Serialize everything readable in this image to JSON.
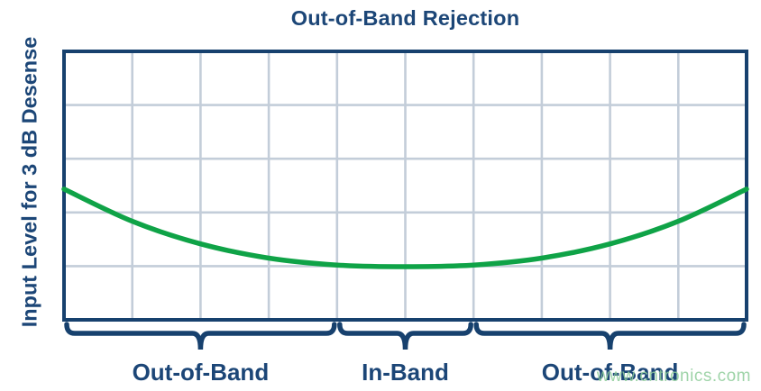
{
  "chart_data": {
    "type": "line",
    "title": "Out-of-Band Rejection",
    "ylabel": "Input Level for 3 dB Desense",
    "xlabel": "",
    "x_axis": {
      "tick_labels": [],
      "grid_columns": 10
    },
    "y_axis": {
      "tick_labels": [],
      "grid_rows": 5
    },
    "grid": true,
    "legend": "none",
    "colors": {
      "curve": "#0fa347",
      "axis_border": "#17416e",
      "grid_line": "#c3cdd9",
      "text": "#1c4677"
    },
    "series": [
      {
        "name": "input-level-for-3db-desense",
        "color": "#0fa347",
        "units": "x = fraction of plot width, y = fraction of plot height from top (no numeric scales shown)",
        "points": [
          [
            0.0,
            0.513
          ],
          [
            0.1,
            0.633
          ],
          [
            0.2,
            0.717
          ],
          [
            0.3,
            0.77
          ],
          [
            0.4,
            0.796
          ],
          [
            0.5,
            0.802
          ],
          [
            0.6,
            0.796
          ],
          [
            0.7,
            0.77
          ],
          [
            0.8,
            0.717
          ],
          [
            0.9,
            0.633
          ],
          [
            1.0,
            0.513
          ]
        ]
      }
    ],
    "regions": [
      {
        "label": "Out-of-Band",
        "x_start": 0,
        "x_end": 4
      },
      {
        "label": "In-Band",
        "x_start": 4,
        "x_end": 6
      },
      {
        "label": "Out-of-Band",
        "x_start": 6,
        "x_end": 10
      }
    ]
  },
  "watermark": {
    "text": "www.cntronics.com",
    "color": "#8fcd9b"
  }
}
